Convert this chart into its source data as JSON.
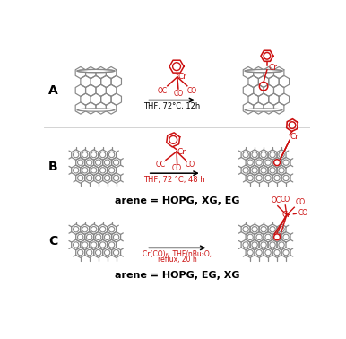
{
  "background_color": "#ffffff",
  "red_color": "#cc1111",
  "black_color": "#000000",
  "gray_color": "#888888",
  "label_A": "A",
  "label_B": "B",
  "label_C": "C",
  "text_A_arrow": "THF, 72°C, 12h",
  "text_B_arrow": "THF, 72 °C, 48 h",
  "text_B_bottom": "arene = HOPG, XG, EG",
  "text_C_arrow1": "Cr(CO)₆, THF/nBu₂O,",
  "text_C_arrow2": "reflux, 20 h",
  "text_C_bottom": "arene = HOPG, EG, XG"
}
